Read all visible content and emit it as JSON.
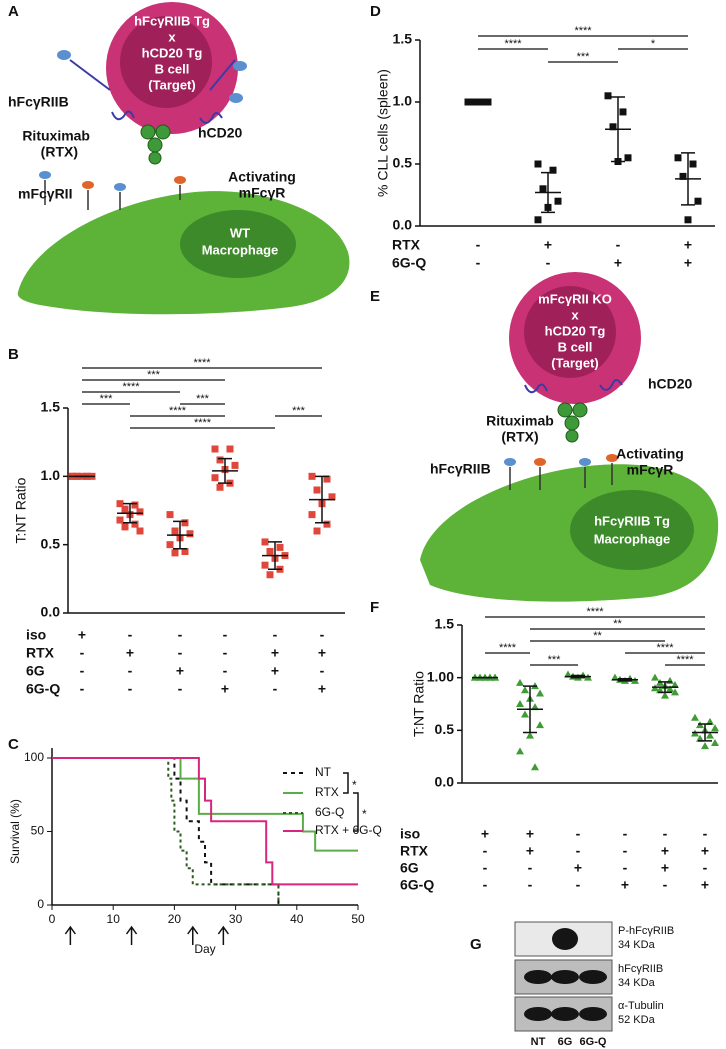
{
  "panel_labels": [
    "A",
    "B",
    "C",
    "D",
    "E",
    "F",
    "G"
  ],
  "diagrams": {
    "A": {
      "cell": [
        "hFcγRIIB Tg",
        "x",
        "hCD20 Tg",
        "B cell",
        "(Target)"
      ],
      "labels": [
        "hFcγRIIB",
        "hCD20",
        "Rituximab",
        "(RTX)",
        "mFcγRII",
        "Activating",
        "mFcγR"
      ],
      "macrophage": [
        "WT",
        "Macrophage"
      ]
    },
    "E": {
      "cell": [
        "mFcγRII KO",
        "x",
        "hCD20 Tg",
        "B cell",
        "(Target)"
      ],
      "labels": [
        "hCD20",
        "Rituximab",
        "(RTX)",
        "hFcγRIIB",
        "Activating",
        "mFcγR"
      ],
      "macrophage": [
        "hFcγRIIB Tg",
        "Macrophage"
      ]
    }
  },
  "chart_data": [
    {
      "type": "dot",
      "ylabel": "T:NT Ratio",
      "ylim": [
        0,
        1.5
      ],
      "yticks": [
        {
          "value": 0,
          "label": "0.0"
        },
        0.5,
        {
          "value": 1,
          "label": "1.0"
        },
        1.5
      ],
      "color": "#e0473a",
      "marker": "square",
      "groups": [
        {
          "values": [
            1,
            1,
            1,
            1,
            1,
            1,
            1,
            1
          ],
          "mean": 1.0,
          "sd": 0
        },
        {
          "values": [
            0.8,
            0.79,
            0.76,
            0.74,
            0.72,
            0.68,
            0.65,
            0.63,
            0.6
          ],
          "mean": 0.73,
          "sd": 0.07
        },
        {
          "values": [
            0.72,
            0.66,
            0.6,
            0.58,
            0.55,
            0.5,
            0.45,
            0.44
          ],
          "mean": 0.57,
          "sd": 0.1
        },
        {
          "values": [
            1.2,
            1.2,
            1.12,
            1.08,
            1.05,
            0.99,
            0.95,
            0.92
          ],
          "mean": 1.04,
          "sd": 0.09
        },
        {
          "values": [
            0.52,
            0.48,
            0.45,
            0.42,
            0.4,
            0.35,
            0.32,
            0.28
          ],
          "mean": 0.42,
          "sd": 0.1
        },
        {
          "values": [
            1.0,
            0.98,
            0.9,
            0.85,
            0.8,
            0.72,
            0.65,
            0.6
          ],
          "mean": 0.83,
          "sd": 0.17
        }
      ],
      "significance": [
        {
          "from": 0,
          "to": 5,
          "label": "****"
        },
        {
          "from": 0,
          "to": 3,
          "label": "***"
        },
        {
          "from": 0,
          "to": 2,
          "label": "****"
        },
        {
          "from": 0,
          "to": 1,
          "label": "***"
        },
        {
          "from": 2,
          "to": 3,
          "label": "***"
        },
        {
          "from": 4,
          "to": 5,
          "label": "***"
        },
        {
          "from": 1,
          "to": 3,
          "label": "****"
        },
        {
          "from": 1,
          "to": 4,
          "label": "****"
        }
      ],
      "conditions": [
        {
          "name": "iso",
          "signs": [
            "+",
            "-",
            "-",
            "-",
            "-",
            "-"
          ]
        },
        {
          "name": "RTX",
          "signs": [
            "-",
            "+",
            "-",
            "-",
            "+",
            "+"
          ]
        },
        {
          "name": "6G",
          "signs": [
            "-",
            "-",
            "+",
            "-",
            "+",
            "-"
          ]
        },
        {
          "name": "6G-Q",
          "signs": [
            "-",
            "-",
            "-",
            "+",
            "-",
            "+"
          ]
        }
      ]
    },
    {
      "type": "survival",
      "ylabel": "Survival (%)",
      "xlabel": "Day",
      "xlim": [
        0,
        50
      ],
      "xticks": [
        0,
        10,
        20,
        30,
        40,
        50
      ],
      "ylim": [
        0,
        100
      ],
      "yticks": [
        0,
        50,
        100
      ],
      "series": [
        {
          "name": "NT",
          "color": "#111111",
          "dash": "4,4",
          "x": [
            0,
            20,
            21,
            22,
            24,
            25,
            26,
            37
          ],
          "values": [
            100,
            86,
            71,
            57,
            43,
            29,
            14,
            0
          ]
        },
        {
          "name": "RTX",
          "color": "#5aad46",
          "dash": "",
          "x": [
            0,
            21,
            24,
            41,
            43,
            50
          ],
          "values": [
            100,
            86,
            62,
            50,
            37,
            37
          ]
        },
        {
          "name": "6G-Q",
          "color": "#2d5a1e",
          "dash": "3,3",
          "x": [
            0,
            19,
            19.5,
            20,
            21,
            22,
            23,
            37
          ],
          "values": [
            100,
            86,
            71,
            50,
            37,
            25,
            14,
            0
          ]
        },
        {
          "name": "RTX + 6G-Q",
          "color": "#d6267e",
          "dash": "",
          "x": [
            0,
            24,
            25,
            26,
            35,
            36,
            50
          ],
          "values": [
            100,
            86,
            71,
            57,
            29,
            14,
            14
          ]
        }
      ],
      "treatment_days": [
        3,
        13,
        23,
        28
      ],
      "significance": [
        {
          "from": 0,
          "to": 1,
          "label": "*"
        },
        {
          "from": 1,
          "to": 3,
          "label": "*"
        }
      ]
    },
    {
      "type": "dot",
      "ylabel": "% CLL cells (spleen)",
      "ylim": [
        0,
        1.5
      ],
      "yticks": [
        {
          "value": 0,
          "label": "0.0"
        },
        0.5,
        {
          "value": 1,
          "label": "1.0"
        },
        1.5
      ],
      "color": "#111111",
      "marker": "square",
      "groups": [
        {
          "values": [
            1,
            1,
            1,
            1,
            1,
            1
          ],
          "mean": 1.0,
          "sd": 0
        },
        {
          "values": [
            0.5,
            0.45,
            0.3,
            0.2,
            0.15,
            0.05
          ],
          "mean": 0.27,
          "sd": 0.16
        },
        {
          "values": [
            1.05,
            0.92,
            0.8,
            0.55,
            0.52
          ],
          "mean": 0.78,
          "sd": 0.26
        },
        {
          "values": [
            0.55,
            0.5,
            0.4,
            0.2,
            0.05
          ],
          "mean": 0.38,
          "sd": 0.21
        }
      ],
      "significance": [
        {
          "from": 0,
          "to": 3,
          "label": "****"
        },
        {
          "from": 0,
          "to": 1,
          "label": "****"
        },
        {
          "from": 2,
          "to": 3,
          "label": "*"
        },
        {
          "from": 1,
          "to": 2,
          "label": "***"
        }
      ],
      "conditions": [
        {
          "name": "RTX",
          "signs": [
            "-",
            "+",
            "-",
            "+"
          ]
        },
        {
          "name": "6G-Q",
          "signs": [
            "-",
            "-",
            "+",
            "+"
          ]
        }
      ]
    },
    {
      "type": "dot",
      "ylabel": "T:NT Ratio",
      "ylim": [
        0,
        1.5
      ],
      "yticks": [
        {
          "value": 0,
          "label": "0.0"
        },
        0.5,
        {
          "value": 1,
          "label": "1.00"
        },
        1.5
      ],
      "color": "#3f9c35",
      "marker": "triangle",
      "groups": [
        {
          "values": [
            1,
            1,
            1,
            1,
            1,
            1,
            1,
            1,
            1,
            1
          ],
          "mean": 1.0,
          "sd": 0
        },
        {
          "values": [
            0.95,
            0.92,
            0.88,
            0.85,
            0.8,
            0.75,
            0.72,
            0.65,
            0.55,
            0.45,
            0.3,
            0.15
          ],
          "mean": 0.7,
          "sd": 0.22
        },
        {
          "values": [
            1.03,
            1.02,
            1.01,
            1.0,
            1.0
          ],
          "mean": 1.01,
          "sd": 0.01
        },
        {
          "values": [
            1.0,
            0.99,
            0.98,
            0.97,
            0.97
          ],
          "mean": 0.98,
          "sd": 0.01
        },
        {
          "values": [
            1.0,
            0.97,
            0.95,
            0.93,
            0.92,
            0.9,
            0.89,
            0.88,
            0.86,
            0.83
          ],
          "mean": 0.91,
          "sd": 0.05
        },
        {
          "values": [
            0.62,
            0.58,
            0.55,
            0.52,
            0.5,
            0.47,
            0.45,
            0.42,
            0.38,
            0.35
          ],
          "mean": 0.48,
          "sd": 0.08
        }
      ],
      "significance": [
        {
          "from": 0,
          "to": 1,
          "label": "****"
        },
        {
          "from": 0,
          "to": 5,
          "label": "****"
        },
        {
          "from": 1,
          "to": 5,
          "label": "**"
        },
        {
          "from": 1,
          "to": 4,
          "label": "**"
        },
        {
          "from": 1,
          "to": 2,
          "label": "***"
        },
        {
          "from": 3,
          "to": 5,
          "label": "****"
        },
        {
          "from": 4,
          "to": 5,
          "label": "****"
        }
      ],
      "conditions": [
        {
          "name": "iso",
          "signs": [
            "+",
            "+",
            "-",
            "-",
            "-",
            "-"
          ]
        },
        {
          "name": "RTX",
          "signs": [
            "-",
            "+",
            "-",
            "-",
            "+",
            "+"
          ]
        },
        {
          "name": "6G",
          "signs": [
            "-",
            "-",
            "+",
            "-",
            "+",
            "-"
          ]
        },
        {
          "name": "6G-Q",
          "signs": [
            "-",
            "-",
            "-",
            "+",
            "-",
            "+"
          ]
        }
      ]
    }
  ],
  "blot": {
    "rows": [
      [
        "P-hFcγRIIB",
        "34 KDa"
      ],
      [
        "hFcγRIIB",
        "34 KDa"
      ],
      [
        "α-Tubulin",
        "52 KDa"
      ]
    ],
    "lanes": [
      "NT",
      "6G",
      "6G-Q"
    ]
  }
}
